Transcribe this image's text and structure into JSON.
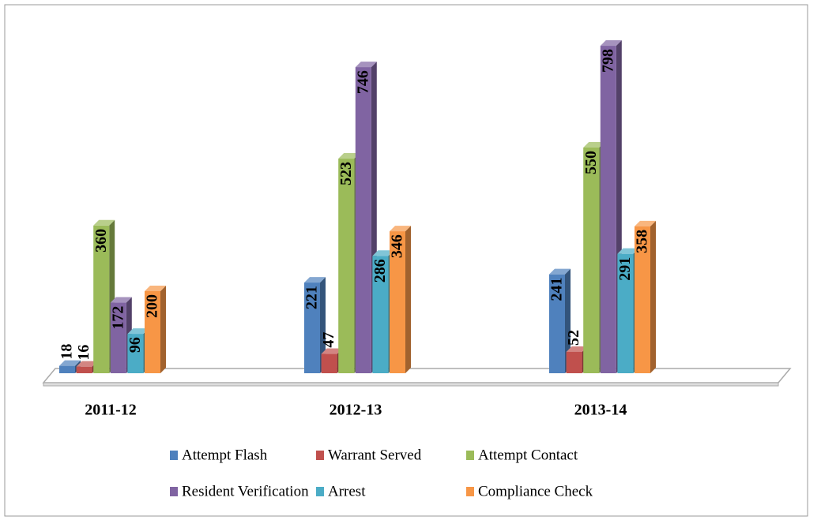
{
  "chart_data": {
    "type": "bar3d",
    "categories": [
      "2011-12",
      "2012-13",
      "2013-14"
    ],
    "series": [
      {
        "name": "Attempt Flash",
        "color": "#4f81bd",
        "values": [
          18,
          221,
          241
        ]
      },
      {
        "name": "Warrant Served",
        "color": "#c0504d",
        "values": [
          16,
          47,
          52
        ]
      },
      {
        "name": "Attempt Contact",
        "color": "#9bbb59",
        "values": [
          360,
          523,
          550
        ]
      },
      {
        "name": "Resident Verification",
        "color": "#8064a2",
        "values": [
          172,
          746,
          798
        ]
      },
      {
        "name": "Arrest",
        "color": "#4bacc6",
        "values": [
          96,
          286,
          291
        ]
      },
      {
        "name": "Compliance Check",
        "color": "#f79646",
        "values": [
          200,
          346,
          358
        ]
      }
    ]
  }
}
